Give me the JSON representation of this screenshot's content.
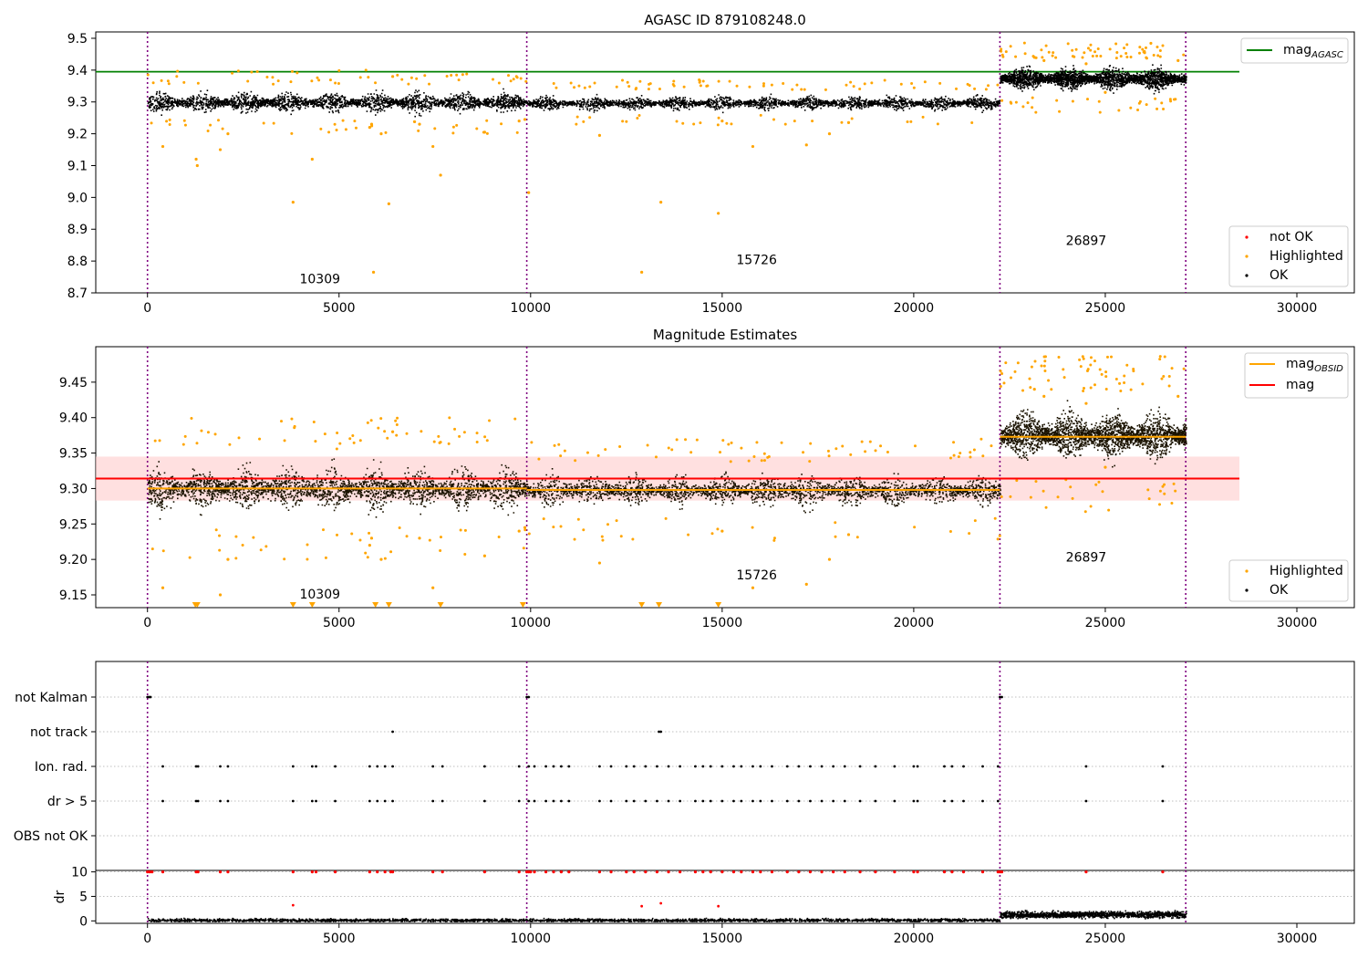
{
  "chart_data": [
    {
      "type": "scatter",
      "title": "AGASC ID 879108248.0",
      "xlim": [
        -1350,
        31500
      ],
      "ylim": [
        8.7,
        9.52
      ],
      "xticks": [
        0,
        5000,
        10000,
        15000,
        20000,
        25000,
        30000
      ],
      "yticks": [
        8.7,
        8.8,
        8.9,
        9.0,
        9.1,
        9.2,
        9.3,
        9.4,
        9.5
      ],
      "ytick_labels": [
        "8.7",
        "8.8",
        "8.9",
        "9.0",
        "9.1",
        "9.2",
        "9.3",
        "9.4",
        "9.5"
      ],
      "segments": [
        {
          "x0": 0,
          "x1": 9900,
          "mean": 9.3,
          "spread": 0.025
        },
        {
          "x0": 9900,
          "x1": 22250,
          "mean": 9.298,
          "spread": 0.018
        },
        {
          "x0": 22250,
          "x1": 27100,
          "mean": 9.375,
          "spread": 0.028
        }
      ],
      "hlines": [
        {
          "name": "mag_AGASC",
          "y": 9.395,
          "x0": -1350,
          "x1": 28500,
          "color": "#008000"
        }
      ],
      "vlines": [
        0,
        9900,
        22250,
        27100
      ],
      "outliers": [
        [
          400,
          9.16
        ],
        [
          1270,
          9.12
        ],
        [
          1300,
          9.1
        ],
        [
          1900,
          9.15
        ],
        [
          2100,
          9.2
        ],
        [
          3800,
          8.985
        ],
        [
          4300,
          9.12
        ],
        [
          5900,
          8.765
        ],
        [
          5800,
          9.22
        ],
        [
          5850,
          9.23
        ],
        [
          6100,
          9.2
        ],
        [
          6300,
          8.98
        ],
        [
          6400,
          9.38
        ],
        [
          7100,
          9.23
        ],
        [
          7450,
          9.16
        ],
        [
          7650,
          9.07
        ],
        [
          8800,
          9.205
        ],
        [
          9700,
          9.24
        ],
        [
          9850,
          9.245
        ],
        [
          9950,
          9.015
        ],
        [
          11800,
          9.195
        ],
        [
          12900,
          8.765
        ],
        [
          13400,
          8.985
        ],
        [
          14900,
          8.95
        ],
        [
          15000,
          9.24
        ],
        [
          15800,
          9.16
        ],
        [
          17200,
          9.165
        ],
        [
          17800,
          9.2
        ],
        [
          18300,
          9.235
        ],
        [
          23150,
          9.44
        ],
        [
          23400,
          9.43
        ],
        [
          24500,
          9.42
        ],
        [
          25000,
          9.33
        ],
        [
          26900,
          9.43
        ]
      ],
      "annotations": [
        {
          "x": 4500,
          "y": 8.73,
          "text": "10309"
        },
        {
          "x": 15900,
          "y": 8.79,
          "text": "15726"
        },
        {
          "x": 24500,
          "y": 8.85,
          "text": "26897"
        }
      ],
      "legends": [
        {
          "position": "upper-right",
          "items": [
            {
              "label_main": "mag",
              "label_sub": "AGASC",
              "kind": "line",
              "color": "#008000"
            }
          ]
        },
        {
          "position": "lower-right",
          "items": [
            {
              "label": "not OK",
              "kind": "dot",
              "color": "#ff0000"
            },
            {
              "label": "Highlighted",
              "kind": "dot",
              "color": "#ffa500"
            },
            {
              "label": "OK",
              "kind": "dot",
              "color": "#000000"
            }
          ]
        }
      ]
    },
    {
      "type": "scatter",
      "title": "Magnitude Estimates",
      "xlim": [
        -1350,
        31500
      ],
      "ylim": [
        9.132,
        9.5
      ],
      "xticks": [
        0,
        5000,
        10000,
        15000,
        20000,
        25000,
        30000
      ],
      "yticks": [
        9.15,
        9.2,
        9.25,
        9.3,
        9.35,
        9.4,
        9.45
      ],
      "ytick_labels": [
        "9.15",
        "9.20",
        "9.25",
        "9.30",
        "9.35",
        "9.40",
        "9.45"
      ],
      "band": {
        "y0": 9.283,
        "y1": 9.345,
        "x0": -1350,
        "x1": 28500,
        "color": "#ffcccc"
      },
      "hlines": [
        {
          "name": "mag",
          "y": 9.314,
          "x0": -1350,
          "x1": 28500,
          "color": "#ff0000"
        },
        {
          "name": "mag_OBSID",
          "y": 9.3,
          "x0": 0,
          "x1": 9900,
          "color": "#ffa500"
        },
        {
          "name": "mag_OBSID",
          "y": 9.298,
          "x0": 9900,
          "x1": 22250,
          "color": "#ffa500"
        },
        {
          "name": "mag_OBSID",
          "y": 9.373,
          "x0": 22250,
          "x1": 27100,
          "color": "#ffa500"
        }
      ],
      "vlines": [
        0,
        9900,
        22250,
        27100
      ],
      "below_markers": [
        1250,
        1300,
        3800,
        4300,
        5950,
        6300,
        7650,
        9800,
        12900,
        13350,
        14900
      ],
      "annotations": [
        {
          "x": 4500,
          "y": 9.145,
          "text": "10309"
        },
        {
          "x": 15900,
          "y": 9.172,
          "text": "15726"
        },
        {
          "x": 24500,
          "y": 9.197,
          "text": "26897"
        }
      ],
      "legends": [
        {
          "position": "upper-right",
          "items": [
            {
              "label_main": "mag",
              "label_sub": "OBSID",
              "kind": "line",
              "color": "#ffa500"
            },
            {
              "label": "mag",
              "kind": "line",
              "color": "#ff0000"
            }
          ]
        },
        {
          "position": "lower-right",
          "items": [
            {
              "label": "Highlighted",
              "kind": "dot",
              "color": "#ffa500"
            },
            {
              "label": "OK",
              "kind": "dot",
              "color": "#000000"
            }
          ]
        }
      ]
    },
    {
      "type": "scatter",
      "title": "",
      "xlim": [
        -1350,
        31500
      ],
      "categories": [
        "not Kalman",
        "not track",
        "Ion. rad.",
        "dr > 5",
        "OBS not OK"
      ],
      "vlines": [
        0,
        9900,
        22250,
        27100
      ],
      "flag_points": {
        "not Kalman": [
          0,
          40,
          80,
          9900,
          9950,
          22250,
          22300
        ],
        "not track": [
          6400,
          13350,
          13400
        ],
        "Ion. rad.": [
          400,
          1270,
          1320,
          1900,
          2100,
          3800,
          4300,
          4400,
          4900,
          5800,
          6000,
          6200,
          6400,
          7450,
          7700,
          8800,
          9700,
          9950,
          10100,
          10400,
          10600,
          10800,
          11000,
          11800,
          12100,
          12500,
          12700,
          13000,
          13300,
          13600,
          13900,
          14300,
          14500,
          14700,
          15000,
          15300,
          15500,
          15800,
          16000,
          16300,
          16700,
          17000,
          17300,
          17600,
          17900,
          18200,
          18600,
          19000,
          19500,
          20000,
          20100,
          20800,
          21000,
          21300,
          21800,
          22200,
          24500,
          26500
        ],
        "dr > 5": [
          400,
          1270,
          1320,
          1900,
          2100,
          3800,
          4300,
          4400,
          4900,
          5800,
          6000,
          6200,
          6400,
          7450,
          7700,
          8800,
          9700,
          9950,
          10100,
          10400,
          10600,
          10800,
          11000,
          11800,
          12100,
          12500,
          12700,
          13000,
          13300,
          13600,
          13900,
          14300,
          14500,
          14700,
          15000,
          15300,
          15500,
          15800,
          16000,
          16300,
          16700,
          17000,
          17300,
          17600,
          17900,
          18200,
          18600,
          19000,
          19500,
          20000,
          20100,
          20800,
          21000,
          21300,
          21800,
          22200,
          24500,
          26500
        ],
        "OBS not OK": []
      }
    },
    {
      "type": "scatter",
      "title": "",
      "ylabel": "dr",
      "xlim": [
        -1350,
        31500
      ],
      "ylim": [
        -0.5,
        10.3
      ],
      "xticks": [
        0,
        5000,
        10000,
        15000,
        20000,
        25000,
        30000
      ],
      "yticks": [
        0,
        5,
        10
      ],
      "ytick_labels": [
        "0",
        "5",
        "10"
      ],
      "vlines": [
        0,
        9900,
        22250,
        27100
      ],
      "segments": [
        {
          "x0": 0,
          "x1": 22250,
          "mean": 0.25,
          "spread": 0.3
        },
        {
          "x0": 22250,
          "x1": 27100,
          "mean": 1.4,
          "spread": 0.6
        }
      ],
      "capped_at": 10,
      "capped_points": [
        0,
        60,
        120,
        400,
        1270,
        1320,
        1900,
        2100,
        3800,
        4300,
        4400,
        4900,
        5800,
        6000,
        6200,
        6350,
        6400,
        7450,
        7700,
        8800,
        9700,
        9900,
        9950,
        10000,
        10100,
        10400,
        10600,
        10800,
        11000,
        11800,
        12100,
        12500,
        12700,
        13000,
        13300,
        13600,
        13900,
        14300,
        14500,
        14700,
        15000,
        15300,
        15500,
        15800,
        16000,
        16300,
        16700,
        17000,
        17300,
        17600,
        17900,
        18200,
        18600,
        19000,
        19500,
        20000,
        20100,
        20800,
        21000,
        21300,
        21800,
        22200,
        22250,
        22300,
        24500,
        26500
      ],
      "mid_points": [
        [
          3800,
          3.2
        ],
        [
          12900,
          3.0
        ],
        [
          13400,
          3.6
        ],
        [
          14900,
          3.0
        ]
      ]
    }
  ]
}
